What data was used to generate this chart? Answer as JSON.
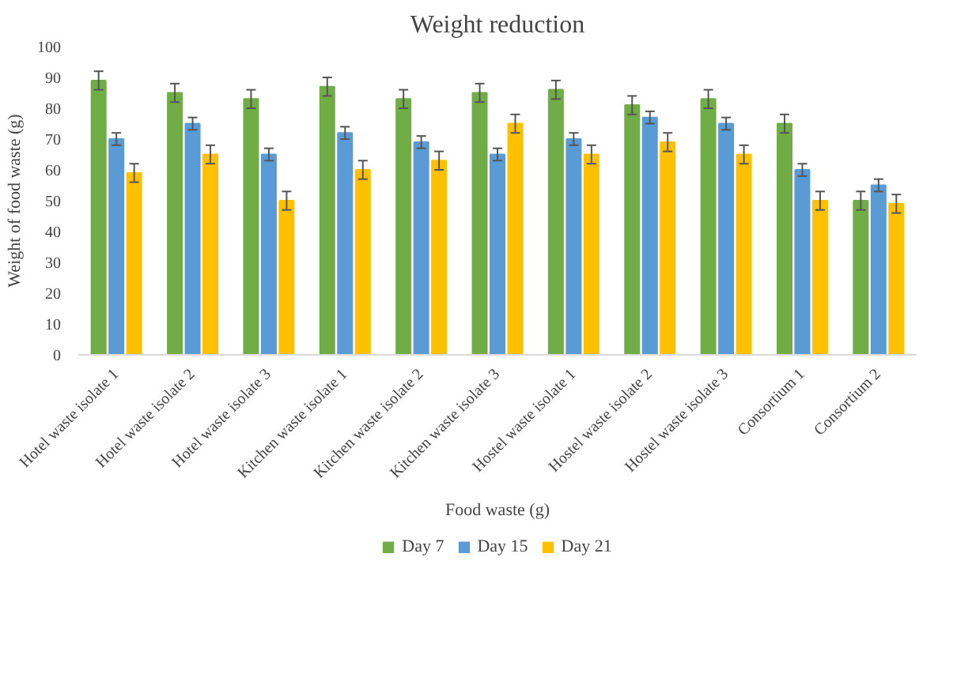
{
  "chart_data": {
    "type": "bar",
    "title": "Weight reduction",
    "xlabel": "Food waste (g)",
    "ylabel": "Weight of food waste (g)",
    "categories": [
      "Hotel waste isolate 1",
      "Hotel waste isolate 2",
      "Hotel waste isolate 3",
      "Kitchen waste isolate 1",
      "Kitchen waste isolate 2",
      "Kitchen waste isolate 3",
      "Hostel waste isolate 1",
      "Hostel waste isolate 2",
      "Hostel waste isolate 3",
      "Consortium 1",
      "Consortium 2"
    ],
    "series": [
      {
        "name": "Day 7",
        "color": "#70ad47",
        "values": [
          89,
          85,
          83,
          87,
          83,
          85,
          86,
          81,
          83,
          75,
          50
        ],
        "errors": [
          3,
          3,
          3,
          3,
          3,
          3,
          3,
          3,
          3,
          3,
          3
        ]
      },
      {
        "name": "Day 15",
        "color": "#5b9bd5",
        "values": [
          70,
          75,
          65,
          72,
          69,
          65,
          70,
          77,
          75,
          60,
          55
        ],
        "errors": [
          2,
          2,
          2,
          2,
          2,
          2,
          2,
          2,
          2,
          2,
          2
        ]
      },
      {
        "name": "Day 21",
        "color": "#ffc000",
        "values": [
          59,
          65,
          50,
          60,
          63,
          75,
          65,
          69,
          65,
          50,
          49
        ],
        "errors": [
          3,
          3,
          3,
          3,
          3,
          3,
          3,
          3,
          3,
          3,
          3
        ]
      }
    ],
    "ylim": [
      0,
      100
    ],
    "yticks": [
      0,
      10,
      20,
      30,
      40,
      50,
      60,
      70,
      80,
      90,
      100
    ],
    "grid": false,
    "legend": "bottom"
  }
}
